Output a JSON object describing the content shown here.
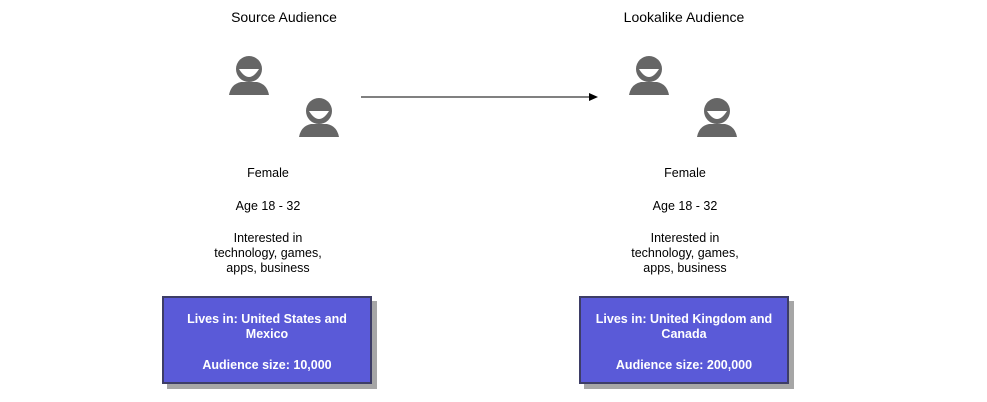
{
  "source": {
    "title": "Source Audience",
    "gender": "Female",
    "age": "Age 18 - 32",
    "interests": [
      "Interested in",
      "technology, games,",
      "apps, business"
    ],
    "location": [
      "Lives in: United States and",
      "Mexico"
    ],
    "size": "Audience size: 10,000"
  },
  "lookalike": {
    "title": "Lookalike Audience",
    "gender": "Female",
    "age": "Age 18 - 32",
    "interests": [
      "Interested in",
      "technology, games,",
      "apps, business"
    ],
    "location": [
      "Lives in: United Kingdom and",
      "Canada"
    ],
    "size": "Audience size: 200,000"
  },
  "colors": {
    "box_fill": "#5a5ad8",
    "box_border": "#3d3d66",
    "icon": "#666666"
  },
  "icons": [
    "person-icon",
    "arrow-right-icon"
  ]
}
